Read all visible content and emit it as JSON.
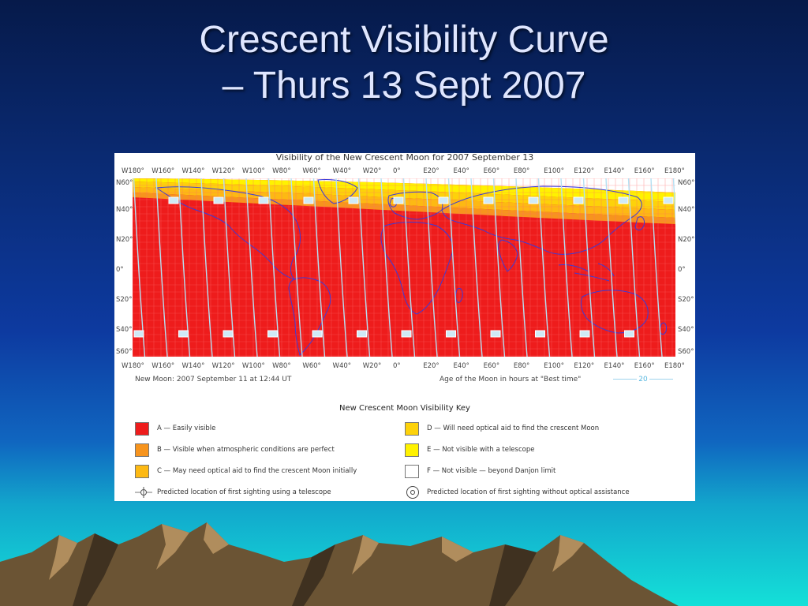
{
  "slide": {
    "title_line1": "Crescent Visibility Curve",
    "title_line2": "– Thurs 13 Sept 2007"
  },
  "map": {
    "title": "Visibility of the New Crescent Moon for 2007 September 13",
    "longitudes": [
      "W180°",
      "W160°",
      "W140°",
      "W120°",
      "W100°",
      "W80°",
      "W60°",
      "W40°",
      "W20°",
      "0°",
      "E20°",
      "E40°",
      "E60°",
      "E80°",
      "E100°",
      "E120°",
      "E140°",
      "E160°",
      "E180°"
    ],
    "latitudes": [
      "N60°",
      "N40°",
      "N20°",
      "0°",
      "S20°",
      "S40°",
      "S60°"
    ],
    "new_moon": "New Moon: 2007 September 11 at 12:44 UT",
    "age_label": "Age of the Moon in hours at \"Best time\"",
    "age_value": "20",
    "colors": {
      "A": "#ee1c1c",
      "B": "#f7941d",
      "C": "#fdb913",
      "D": "#fdd20a",
      "E": "#fff200",
      "F": "#ffffff",
      "coast": "#3b3bd9",
      "timeline": "#a8d8ee"
    }
  },
  "key": {
    "title": "New Crescent Moon Visibility Key",
    "left": [
      {
        "code": "A",
        "label": "A — Easily visible",
        "color": "#ee1c1c"
      },
      {
        "code": "B",
        "label": "B — Visible when atmospheric conditions are perfect",
        "color": "#f7941d"
      },
      {
        "code": "C",
        "label": "C — May need optical aid to find the crescent Moon initially",
        "color": "#fdb913"
      }
    ],
    "right": [
      {
        "code": "D",
        "label": "D — Will need optical aid to find the crescent Moon",
        "color": "#fdd20a"
      },
      {
        "code": "E",
        "label": "E — Not visible with a telescope",
        "color": "#fff200"
      },
      {
        "code": "F",
        "label": "F — Not visible — beyond Danjon limit",
        "color": "#ffffff"
      }
    ],
    "telescope_label": "Predicted location of first sighting using a telescope",
    "naked_eye_label": "Predicted location of first sighting without optical assistance"
  }
}
